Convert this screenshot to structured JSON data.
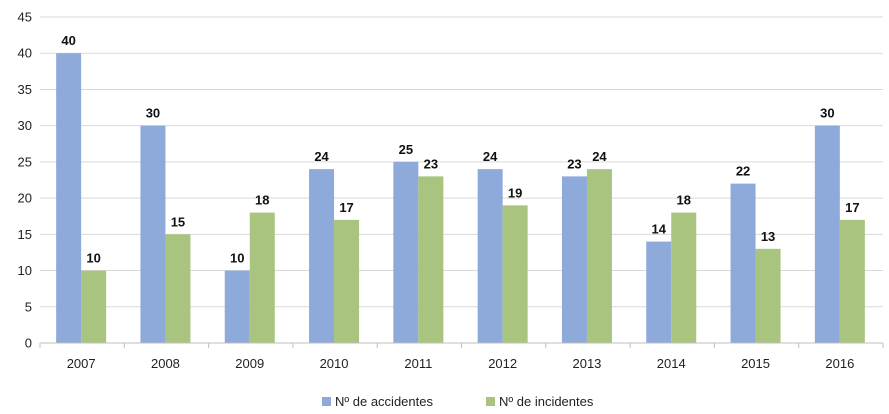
{
  "chart_data": {
    "type": "bar",
    "categories": [
      "2007",
      "2008",
      "2009",
      "2010",
      "2011",
      "2012",
      "2013",
      "2014",
      "2015",
      "2016"
    ],
    "series": [
      {
        "name": "Nº de accidentes",
        "values": [
          40,
          30,
          10,
          24,
          25,
          24,
          23,
          14,
          22,
          30
        ],
        "color": "#8eaadb"
      },
      {
        "name": "Nº de incidentes",
        "values": [
          10,
          15,
          18,
          17,
          23,
          19,
          24,
          18,
          13,
          17
        ],
        "color": "#a9c47f"
      }
    ],
    "ylim": [
      0,
      45
    ],
    "yticks": [
      0,
      5,
      10,
      15,
      20,
      25,
      30,
      35,
      40,
      45
    ],
    "grid": true,
    "data_labels": true,
    "legend_position": "bottom"
  }
}
